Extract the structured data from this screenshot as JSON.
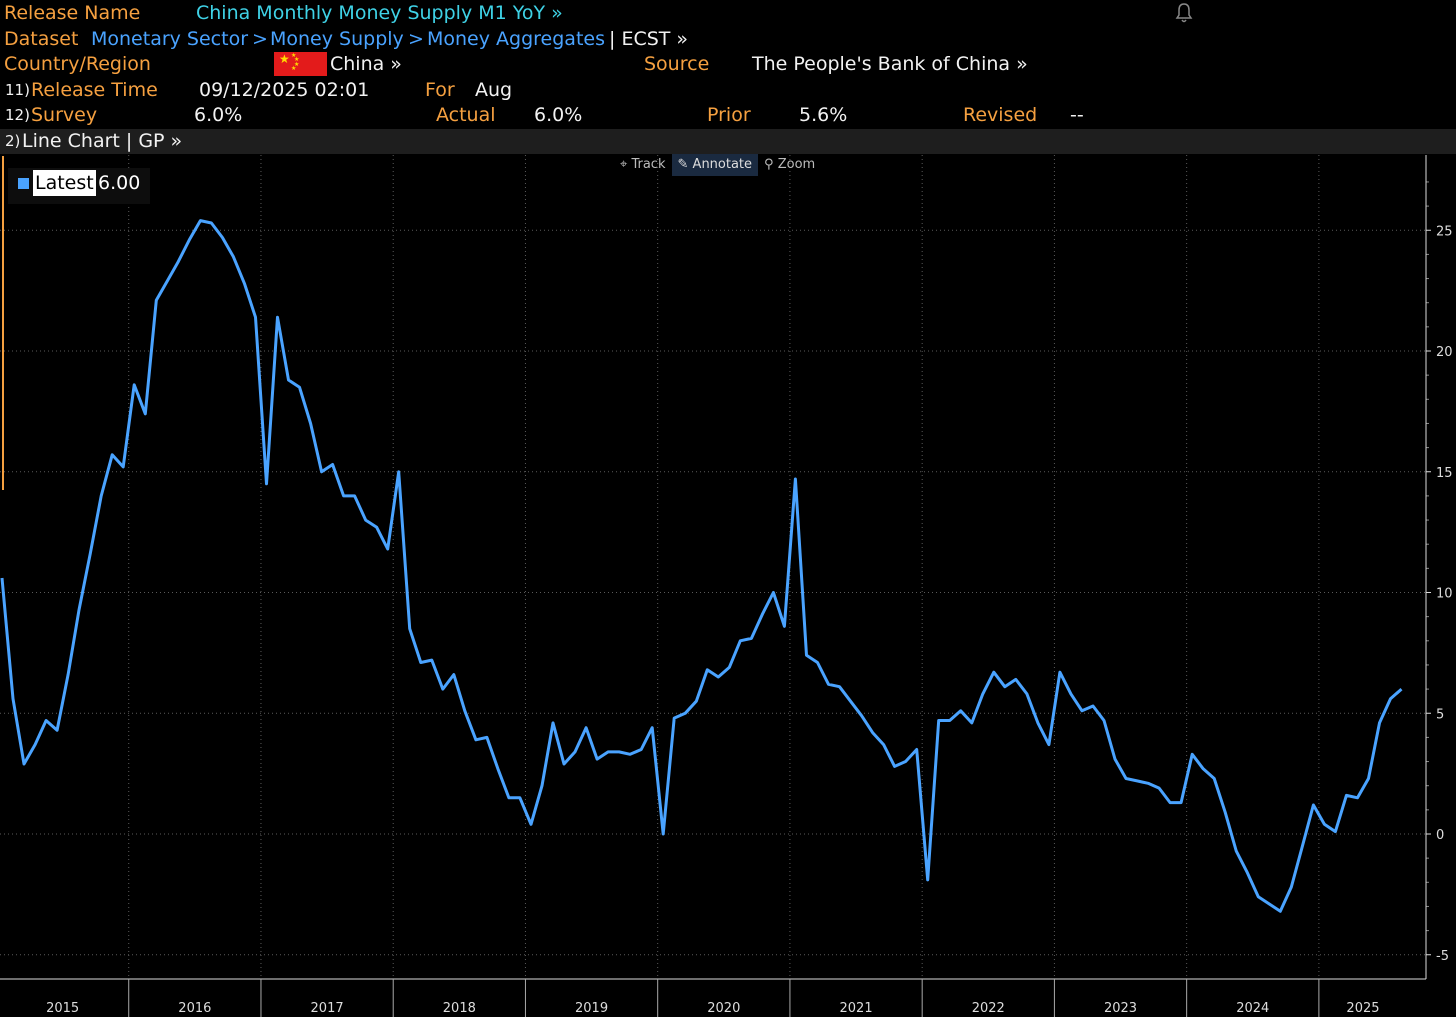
{
  "header": {
    "release_name_label": "Release Name",
    "release_name": "China Monthly Money Supply M1 YoY »",
    "dataset_label": "Dataset",
    "dataset_path": [
      "Monetary Sector",
      "Money Supply",
      "Money Aggregates"
    ],
    "dataset_sep": ">",
    "dataset_tail": "| ECST »",
    "country_label": "Country/Region",
    "country": "China »",
    "source_label": "Source",
    "source": "The People's Bank of China »",
    "release_time_num": "11)",
    "release_time_label": "Release Time",
    "release_time": "09/12/2025 02:01",
    "for_label": "For",
    "for_value": "Aug",
    "survey_num": "12)",
    "survey_label": "Survey",
    "survey": "6.0%",
    "actual_label": "Actual",
    "actual": "6.0%",
    "prior_label": "Prior",
    "prior": "5.6%",
    "revised_label": "Revised",
    "revised": "--"
  },
  "chart_bar": {
    "num": "2)",
    "title": "Line Chart | GP »"
  },
  "tools": [
    {
      "icon": "crosshair-icon",
      "label": "Track"
    },
    {
      "icon": "pencil-icon",
      "label": "Annotate"
    },
    {
      "icon": "magnifier-icon",
      "label": "Zoom"
    }
  ],
  "legend": {
    "label": "Latest",
    "value": "6.00"
  },
  "colors": {
    "line": "#4aa3ff",
    "orange": "#f5a040",
    "cyan": "#3fd2e6",
    "background": "#000000"
  },
  "chart_data": {
    "type": "line",
    "title": "",
    "xlabel": "",
    "ylabel": "",
    "ylim": [
      -5.5,
      27.5
    ],
    "yticks": [
      -5,
      0,
      5,
      10,
      15,
      20,
      25
    ],
    "xticks": [
      "2015",
      "2016",
      "2017",
      "2018",
      "2019",
      "2020",
      "2021",
      "2022",
      "2023",
      "2024",
      "2025"
    ],
    "grid": true,
    "series": [
      {
        "name": "Latest",
        "start": "2015-01",
        "frequency": "monthly",
        "values": [
          10.6,
          5.6,
          2.9,
          3.7,
          4.7,
          4.3,
          6.6,
          9.3,
          11.6,
          14.0,
          15.7,
          15.2,
          18.6,
          17.4,
          22.1,
          22.9,
          23.7,
          24.6,
          25.4,
          25.3,
          24.7,
          23.9,
          22.8,
          21.4,
          14.5,
          21.4,
          18.8,
          18.5,
          17.0,
          15.0,
          15.3,
          14.0,
          14.0,
          13.0,
          12.7,
          11.8,
          15.0,
          8.5,
          7.1,
          7.2,
          6.0,
          6.6,
          5.1,
          3.9,
          4.0,
          2.7,
          1.5,
          1.5,
          0.4,
          2.0,
          4.6,
          2.9,
          3.4,
          4.4,
          3.1,
          3.4,
          3.4,
          3.3,
          3.5,
          4.4,
          0.0,
          4.8,
          5.0,
          5.5,
          6.8,
          6.5,
          6.9,
          8.0,
          8.1,
          9.1,
          10.0,
          8.6,
          14.7,
          7.4,
          7.1,
          6.2,
          6.1,
          5.5,
          4.9,
          4.2,
          3.7,
          2.8,
          3.0,
          3.5,
          -1.9,
          4.7,
          4.7,
          5.1,
          4.6,
          5.8,
          6.7,
          6.1,
          6.4,
          5.8,
          4.6,
          3.7,
          6.7,
          5.8,
          5.1,
          5.3,
          4.7,
          3.1,
          2.3,
          2.2,
          2.1,
          1.9,
          1.3,
          1.3,
          3.3,
          2.7,
          2.3,
          0.9,
          -0.7,
          -1.6,
          -2.6,
          -2.9,
          -3.2,
          -2.2,
          -0.5,
          1.2,
          0.4,
          0.1,
          1.6,
          1.5,
          2.3,
          4.6,
          5.6,
          6.0
        ]
      }
    ]
  }
}
